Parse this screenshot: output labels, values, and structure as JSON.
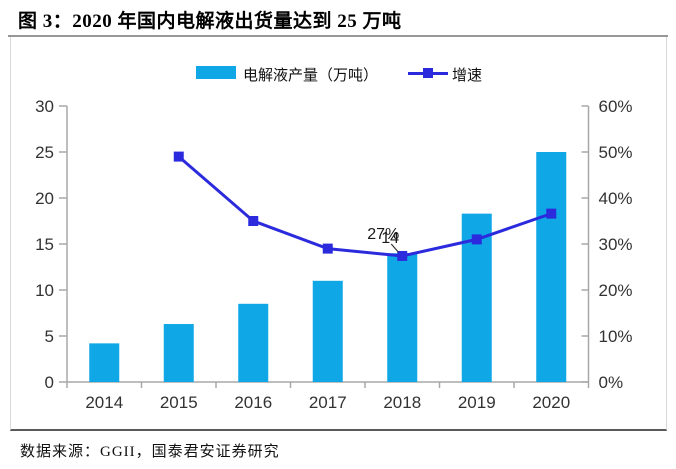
{
  "title": "图 3：2020 年国内电解液出货量达到 25 万吨",
  "legend": {
    "bar_label": "电解液产量（万吨）",
    "line_label": "增速"
  },
  "footer": "数据来源：GGII，国泰君安证券研究",
  "colors": {
    "bar": "#0FA7E5",
    "line": "#2B2BDD",
    "axis": "#A8A8A8",
    "tick_text": "#333333",
    "annotation_text": "#1a1a1a"
  },
  "chart_data": {
    "type": "bar",
    "categories": [
      "2014",
      "2015",
      "2016",
      "2017",
      "2018",
      "2019",
      "2020"
    ],
    "series": [
      {
        "name": "电解液产量（万吨）",
        "type": "bar",
        "axis": "left",
        "values": [
          4.2,
          6.3,
          8.5,
          11,
          14,
          18.3,
          25
        ]
      },
      {
        "name": "增速",
        "type": "line",
        "axis": "right",
        "unit": "%",
        "values": [
          null,
          49,
          35,
          29,
          27.4,
          31,
          36.6
        ]
      }
    ],
    "left_axis": {
      "min": 0,
      "max": 30,
      "step": 5
    },
    "right_axis": {
      "min": 0,
      "max": 60,
      "step": 10,
      "suffix": "%"
    },
    "annotations": [
      {
        "at_category": "2018",
        "line_value_label": "27%",
        "bar_value_label": "14"
      }
    ],
    "title": "2020 年国内电解液出货量达到 25 万吨",
    "legend_position": "top"
  }
}
